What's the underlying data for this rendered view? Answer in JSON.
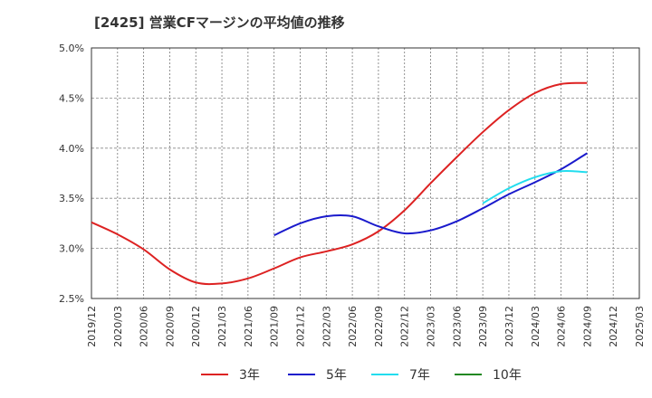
{
  "chart_data": {
    "type": "line",
    "title": "[2425]  営業CFマージンの平均値の推移",
    "xlabel": "",
    "ylabel": "",
    "ylim": [
      2.5,
      5.0
    ],
    "y_ticks": [
      "2.5%",
      "3.0%",
      "3.5%",
      "4.0%",
      "4.5%",
      "5.0%"
    ],
    "y_tick_values": [
      2.5,
      3.0,
      3.5,
      4.0,
      4.5,
      5.0
    ],
    "x_ticks": [
      "2019/12",
      "2020/03",
      "2020/06",
      "2020/09",
      "2020/12",
      "2021/03",
      "2021/06",
      "2021/09",
      "2021/12",
      "2022/03",
      "2022/06",
      "2022/09",
      "2022/12",
      "2023/03",
      "2023/06",
      "2023/09",
      "2023/12",
      "2024/03",
      "2024/06",
      "2024/09",
      "2024/12",
      "2025/03"
    ],
    "grid": true,
    "legend_position": "bottom",
    "series": [
      {
        "name": "3年",
        "color": "#dd2222",
        "start_index": 0,
        "values": [
          3.26,
          3.14,
          2.99,
          2.79,
          2.66,
          2.65,
          2.7,
          2.8,
          2.91,
          2.97,
          3.04,
          3.17,
          3.38,
          3.65,
          3.91,
          4.16,
          4.38,
          4.55,
          4.64,
          4.65
        ]
      },
      {
        "name": "5年",
        "color": "#1a1acc",
        "start_index": 7,
        "values": [
          3.13,
          3.25,
          3.32,
          3.32,
          3.22,
          3.15,
          3.18,
          3.27,
          3.4,
          3.54,
          3.66,
          3.79,
          3.95
        ]
      },
      {
        "name": "7年",
        "color": "#22ddee",
        "start_index": 15,
        "values": [
          3.45,
          3.6,
          3.71,
          3.77,
          3.76
        ]
      },
      {
        "name": "10年",
        "color": "#228822",
        "start_index": 0,
        "values": []
      }
    ]
  }
}
